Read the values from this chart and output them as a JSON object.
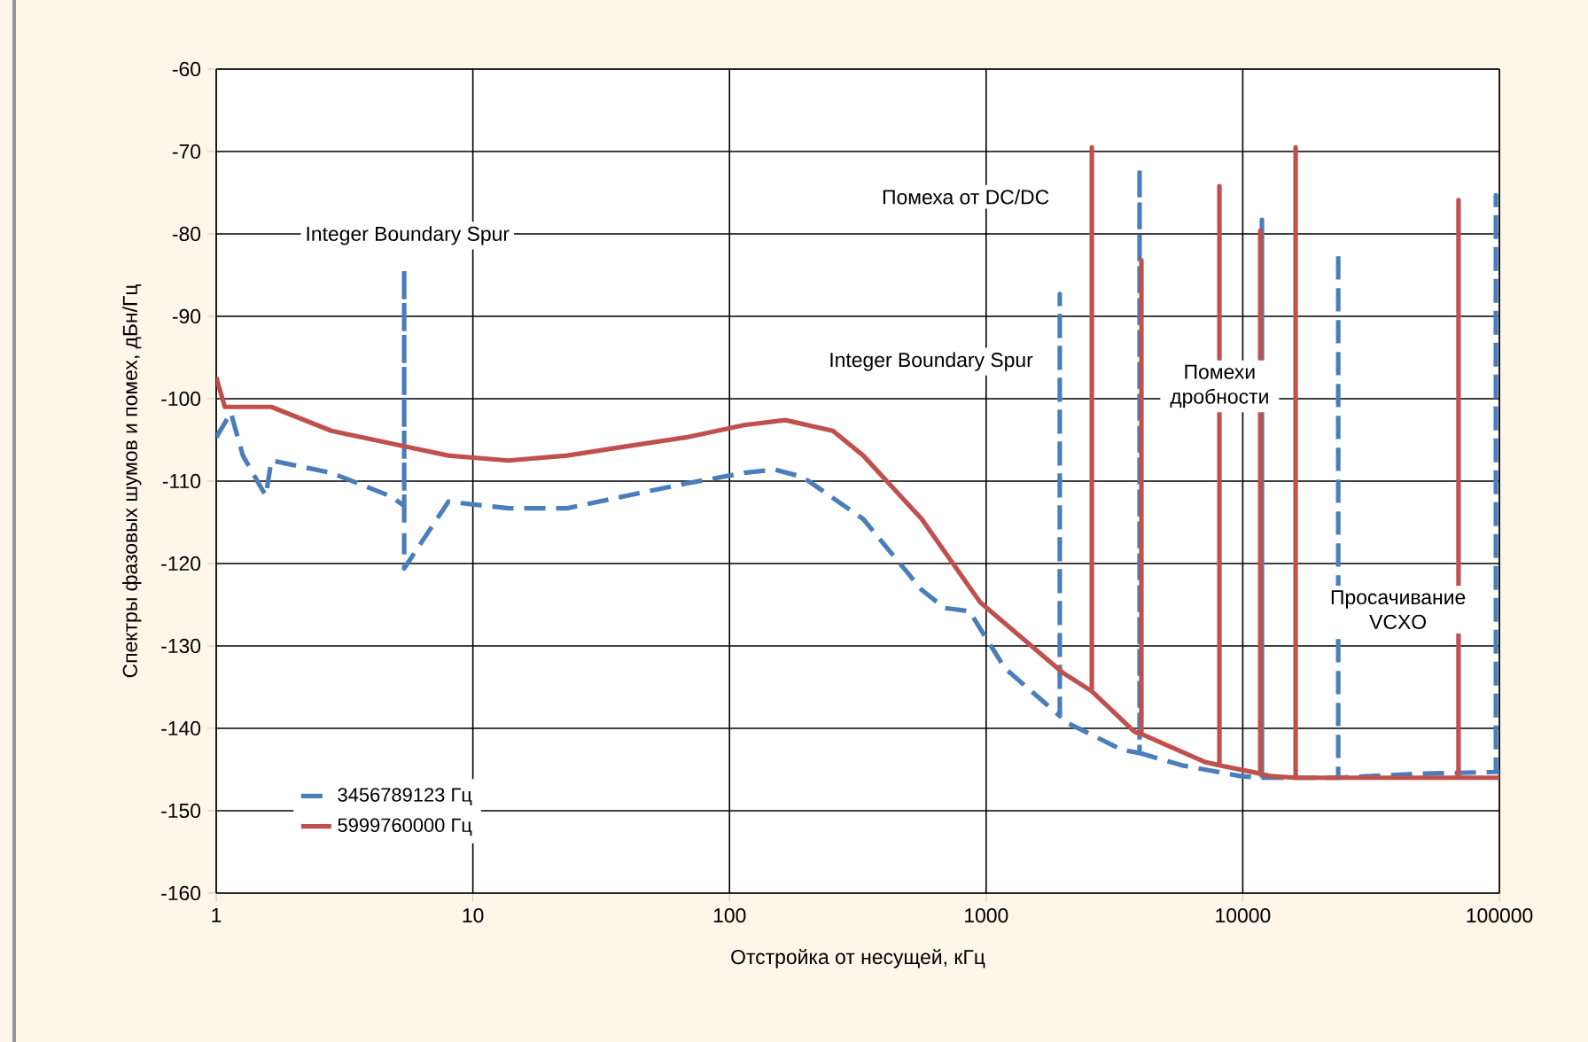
{
  "chart_data": {
    "type": "line",
    "xlabel": "Отстройка от несущей, кГц",
    "ylabel": "Спектры фазовых шумов и помех, дБн/Гц",
    "log": "x",
    "xlim": [
      1,
      100000
    ],
    "xticks": [
      1,
      10,
      100,
      1000,
      10000,
      100000
    ],
    "ylim": [
      -160,
      -60
    ],
    "yticks": [
      -160,
      -150,
      -140,
      -130,
      -120,
      -110,
      -100,
      -90,
      -80,
      -70,
      -60
    ],
    "grid": true,
    "legend": "bottom left",
    "marker": "none",
    "annotations": [
      "Integer Boundary Spur",
      "Помеха от DC/DC",
      "Integer Boundary Spur",
      "Помехи дробности",
      "Просачивание VCXO"
    ],
    "series": [
      {
        "name": "3456789123 Гц",
        "color": "#4a7ebb",
        "line_style": "dashed",
        "x": [
          1,
          1.14,
          1.27,
          1.56,
          1.64,
          2.81,
          4.75,
          5.4,
          5.4,
          5.4,
          8.03,
          13.8,
          23.3,
          39.4,
          67.6,
          114,
          150,
          193,
          332,
          561,
          689,
          861,
          1183,
          1937,
          1937,
          1937,
          2000,
          3381,
          3963,
          3963,
          3963,
          5807,
          9810,
          11880,
          11880,
          11880,
          23550,
          23550,
          23550,
          50000,
          96900,
          96900,
          96900,
          100000
        ],
        "values": [
          -104.7,
          -101.7,
          -106.9,
          -111.8,
          -107.5,
          -109,
          -111.8,
          -113,
          -84.3,
          -120.6,
          -112.5,
          -113.3,
          -113.3,
          -111.8,
          -110.3,
          -109,
          -108.6,
          -109.5,
          -114.6,
          -123.2,
          -125.4,
          -125.8,
          -132.7,
          -138.5,
          -87.3,
          -138.5,
          -139.1,
          -142.6,
          -143,
          -72,
          -143,
          -144.5,
          -145.8,
          -146,
          -78.3,
          -146,
          -146,
          -82.2,
          -146,
          -145.5,
          -145.3,
          -75.3,
          -145.3,
          -145.3
        ]
      },
      {
        "name": "5999760000 Гц",
        "color": "#c0504d",
        "line_style": "solid",
        "x": [
          1,
          1.08,
          1.64,
          2.81,
          4.75,
          8.03,
          13.8,
          23.3,
          39.4,
          67.6,
          114,
          165,
          253,
          332,
          561,
          948,
          2000,
          2582,
          2582,
          2582,
          3776,
          4027,
          4027,
          4027,
          7140,
          8110,
          8110,
          8110,
          11700,
          11700,
          11700,
          12850,
          16070,
          16070,
          16070,
          30000,
          69300,
          69300,
          69300,
          100000
        ],
        "values": [
          -97.4,
          -101,
          -101,
          -103.9,
          -105.4,
          -106.9,
          -107.5,
          -106.9,
          -105.8,
          -104.7,
          -103.2,
          -102.6,
          -103.9,
          -106.9,
          -114.6,
          -124.7,
          -133.3,
          -135.5,
          -69.5,
          -135.5,
          -140.4,
          -140.7,
          -83.2,
          -140.7,
          -144.1,
          -144.5,
          -74.2,
          -144.5,
          -145.5,
          -79.6,
          -145.5,
          -145.8,
          -146,
          -69.5,
          -146,
          -146,
          -146,
          -75.9,
          -146,
          -146
        ]
      }
    ]
  }
}
